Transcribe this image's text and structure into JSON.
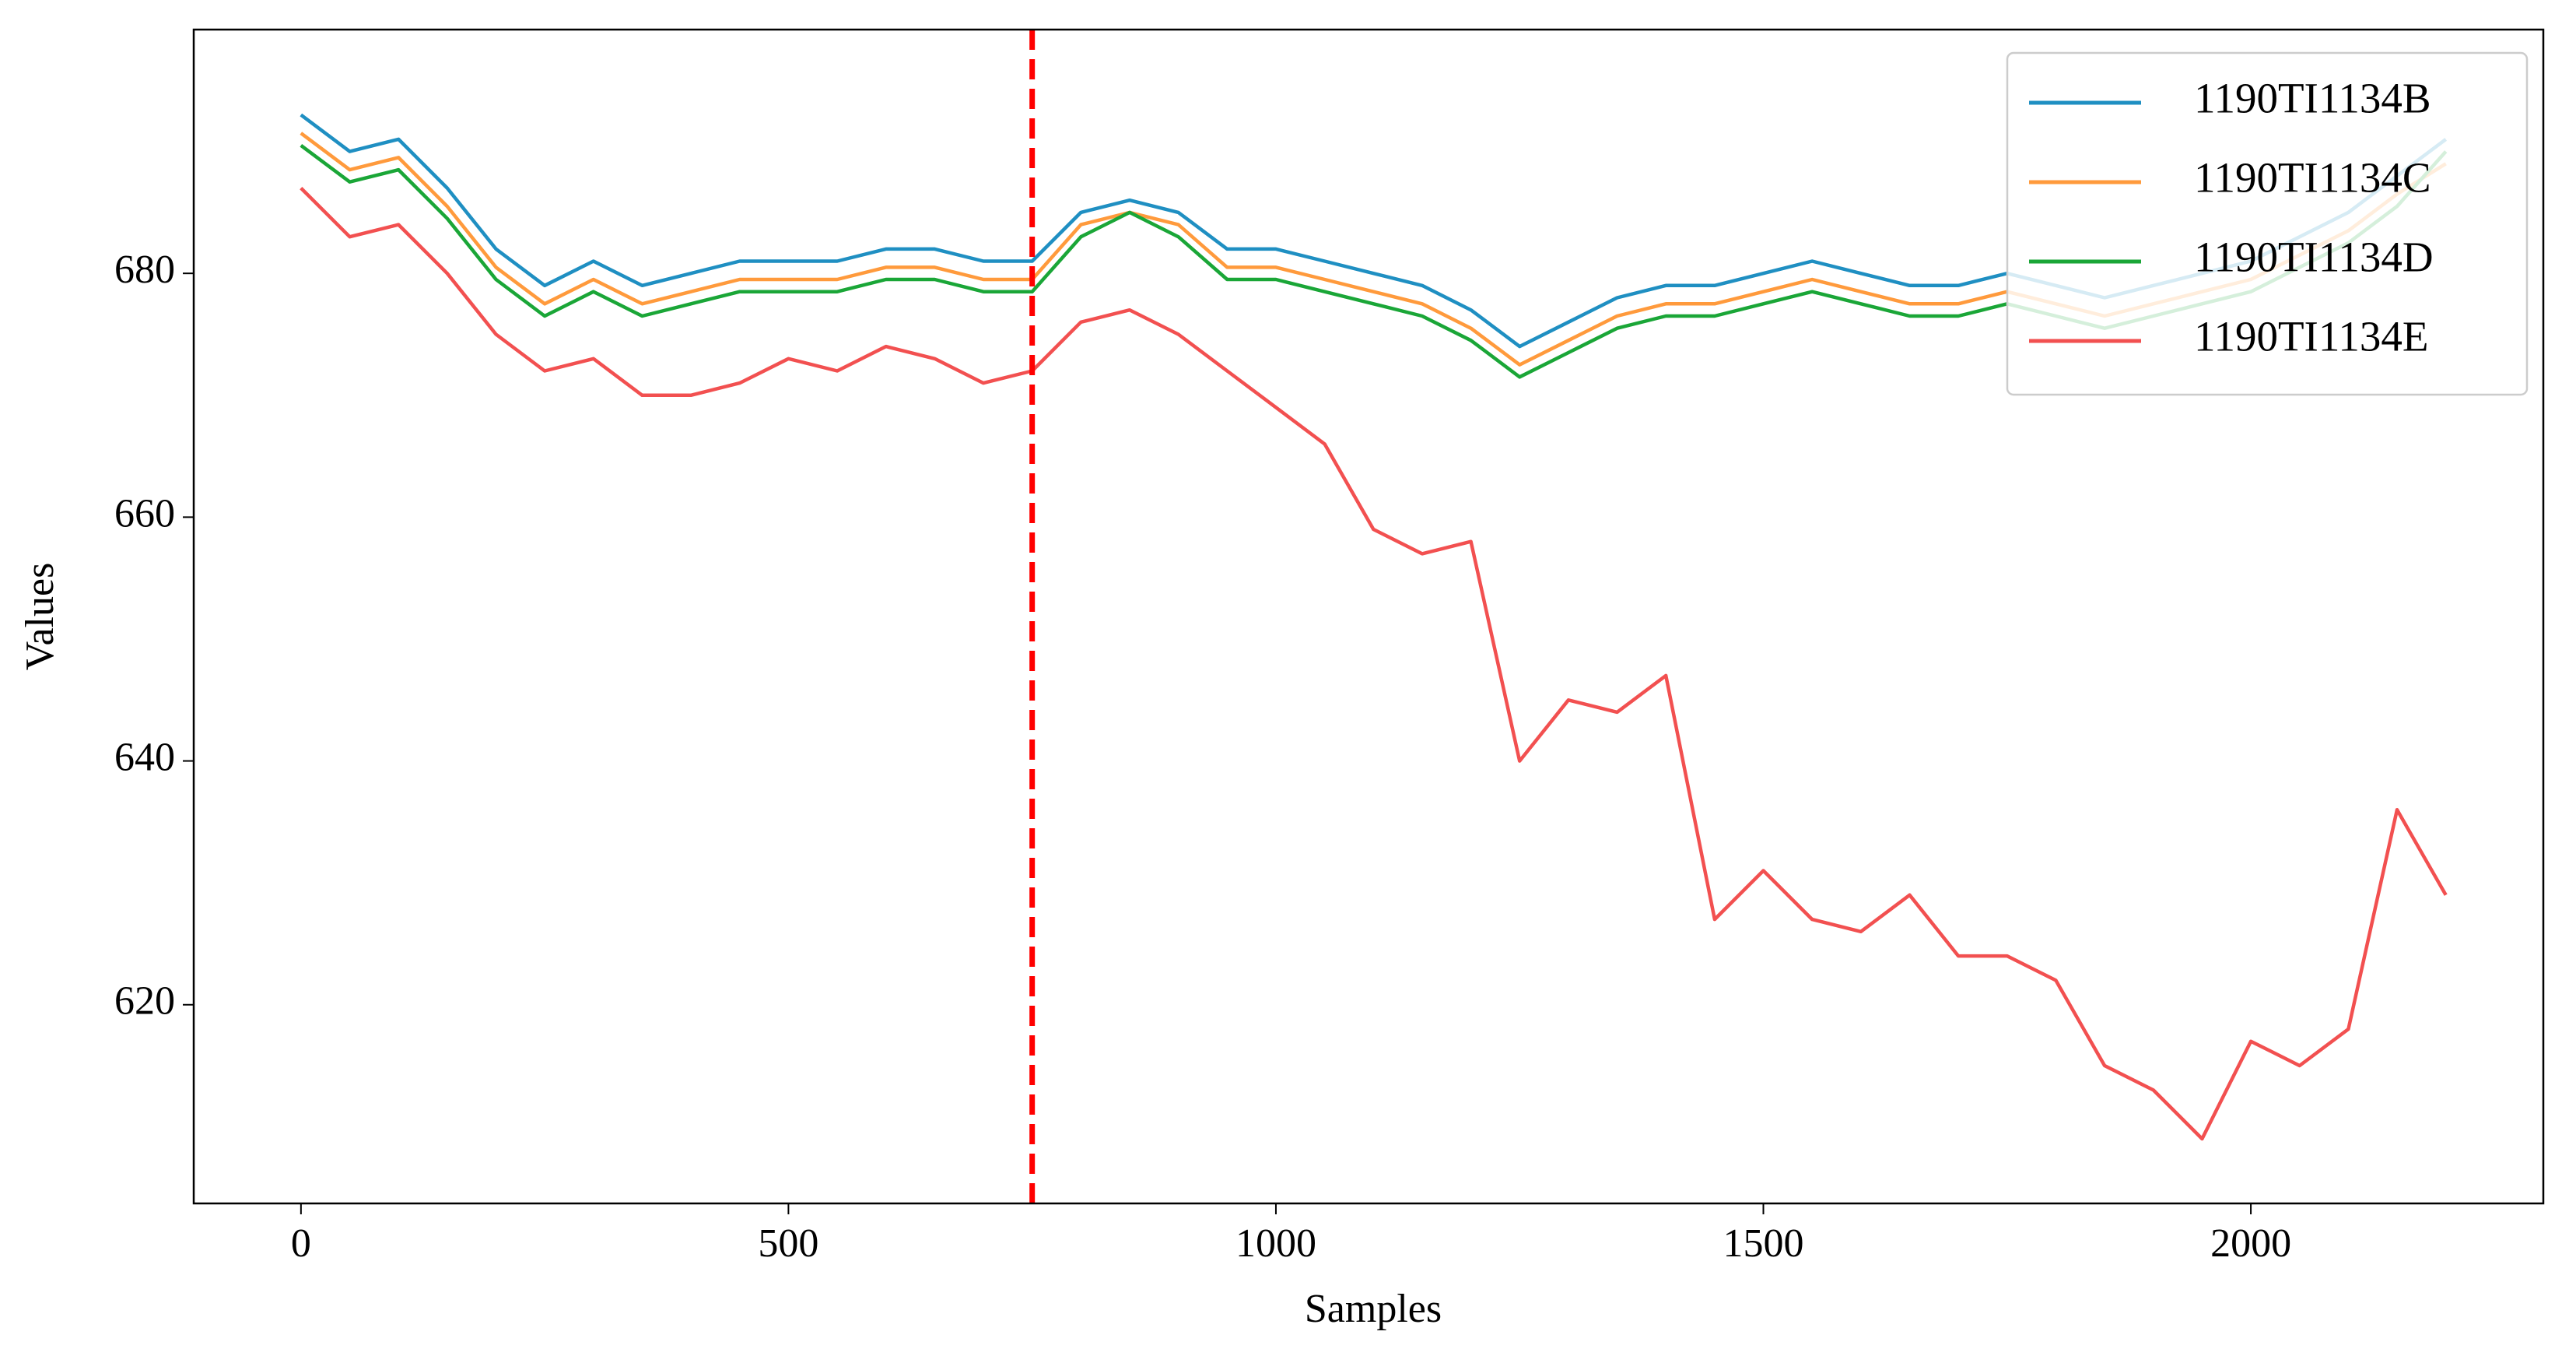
{
  "chart_data": {
    "type": "line",
    "xlabel": "Samples",
    "ylabel": "Values",
    "x": [
      0,
      50,
      100,
      150,
      200,
      250,
      300,
      350,
      400,
      450,
      500,
      550,
      600,
      650,
      700,
      750,
      800,
      850,
      900,
      950,
      1000,
      1050,
      1100,
      1150,
      1200,
      1250,
      1300,
      1350,
      1400,
      1450,
      1500,
      1550,
      1600,
      1650,
      1700,
      1750,
      1800,
      1850,
      1900,
      1950,
      2000,
      2050,
      2100,
      2150,
      2200
    ],
    "series": [
      {
        "name": "1190TI1134B",
        "color": "#1f8fc2",
        "values": [
          693,
          690,
          691,
          687,
          682,
          679,
          681,
          679,
          680,
          681,
          681,
          681,
          682,
          682,
          681,
          681,
          685,
          686,
          685,
          682,
          682,
          681,
          680,
          679,
          677,
          674,
          676,
          678,
          679,
          679,
          680,
          681,
          680,
          679,
          679,
          680,
          679,
          678,
          679,
          680,
          681,
          683,
          685,
          688,
          691
        ]
      },
      {
        "name": "1190TI1134C",
        "color": "#ff9a3c",
        "values": [
          691.5,
          688.5,
          689.5,
          685.5,
          680.5,
          677.5,
          679.5,
          677.5,
          678.5,
          679.5,
          679.5,
          679.5,
          680.5,
          680.5,
          679.5,
          679.5,
          684,
          685,
          684,
          680.5,
          680.5,
          679.5,
          678.5,
          677.5,
          675.5,
          672.5,
          674.5,
          676.5,
          677.5,
          677.5,
          678.5,
          679.5,
          678.5,
          677.5,
          677.5,
          678.5,
          677.5,
          676.5,
          677.5,
          678.5,
          679.5,
          681.5,
          683.5,
          686.5,
          689
        ]
      },
      {
        "name": "1190TI1134D",
        "color": "#1aa637",
        "values": [
          690.5,
          687.5,
          688.5,
          684.5,
          679.5,
          676.5,
          678.5,
          676.5,
          677.5,
          678.5,
          678.5,
          678.5,
          679.5,
          679.5,
          678.5,
          678.5,
          683,
          685,
          683,
          679.5,
          679.5,
          678.5,
          677.5,
          676.5,
          674.5,
          671.5,
          673.5,
          675.5,
          676.5,
          676.5,
          677.5,
          678.5,
          677.5,
          676.5,
          676.5,
          677.5,
          676.5,
          675.5,
          676.5,
          677.5,
          678.5,
          680.5,
          682.5,
          685.5,
          690
        ]
      },
      {
        "name": "1190TI1134E",
        "color": "#f25050",
        "values": [
          687,
          683,
          684,
          680,
          675,
          672,
          673,
          670,
          670,
          671,
          673,
          672,
          674,
          673,
          671,
          672,
          676,
          677,
          675,
          672,
          669,
          666,
          659,
          657,
          658,
          640,
          645,
          644,
          647,
          627,
          631,
          627,
          626,
          629,
          624,
          624,
          622,
          615,
          613,
          609,
          617,
          615,
          618,
          636,
          629
        ]
      }
    ],
    "vline": {
      "x": 750,
      "color": "#ff0000"
    },
    "xlim": [
      -110,
      2300
    ],
    "ylim": [
      603.7,
      700
    ],
    "xticks": [
      0,
      500,
      1000,
      1500,
      2000
    ],
    "yticks": [
      620,
      640,
      660,
      680
    ],
    "legend": "upper right"
  }
}
